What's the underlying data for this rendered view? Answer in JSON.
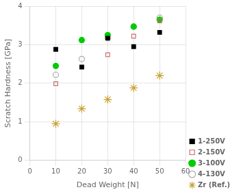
{
  "chart_data": {
    "type": "scatter",
    "xlabel": "Dead Weight [N]",
    "ylabel": "Scratch Hardness [GPa]",
    "xlim": [
      0,
      60
    ],
    "ylim": [
      0,
      4
    ],
    "xticks": [
      0,
      10,
      20,
      30,
      40,
      50,
      60
    ],
    "yticks": [
      0,
      1,
      2,
      3,
      4
    ],
    "series": [
      {
        "name": "1-250V",
        "x": [
          10,
          20,
          30,
          40,
          50
        ],
        "values": [
          2.88,
          2.42,
          3.17,
          2.95,
          3.32
        ],
        "color": "black",
        "marker": "square"
      },
      {
        "name": "2-150V",
        "x": [
          10,
          20,
          30,
          40,
          50
        ],
        "values": [
          1.99,
          2.42,
          2.74,
          3.22,
          3.62
        ],
        "color": "#c87070",
        "marker": "square-open"
      },
      {
        "name": "3-100V",
        "x": [
          10,
          20,
          30,
          40,
          50
        ],
        "values": [
          2.45,
          3.12,
          3.25,
          3.47,
          3.65
        ],
        "color": "#00cc00",
        "marker": "circle"
      },
      {
        "name": "4-130V",
        "x": [
          10,
          20,
          30,
          40,
          50
        ],
        "values": [
          2.22,
          2.63,
          3.17,
          3.47,
          3.7
        ],
        "color": "#aaaaaa",
        "marker": "circle-open"
      },
      {
        "name": "Zr (Ref.)",
        "x": [
          10,
          20,
          30,
          40,
          50
        ],
        "values": [
          0.95,
          1.34,
          1.58,
          1.88,
          2.2
        ],
        "color": "#c8a030",
        "marker": "star-open"
      }
    ],
    "legend": "lower right",
    "grid": true
  }
}
